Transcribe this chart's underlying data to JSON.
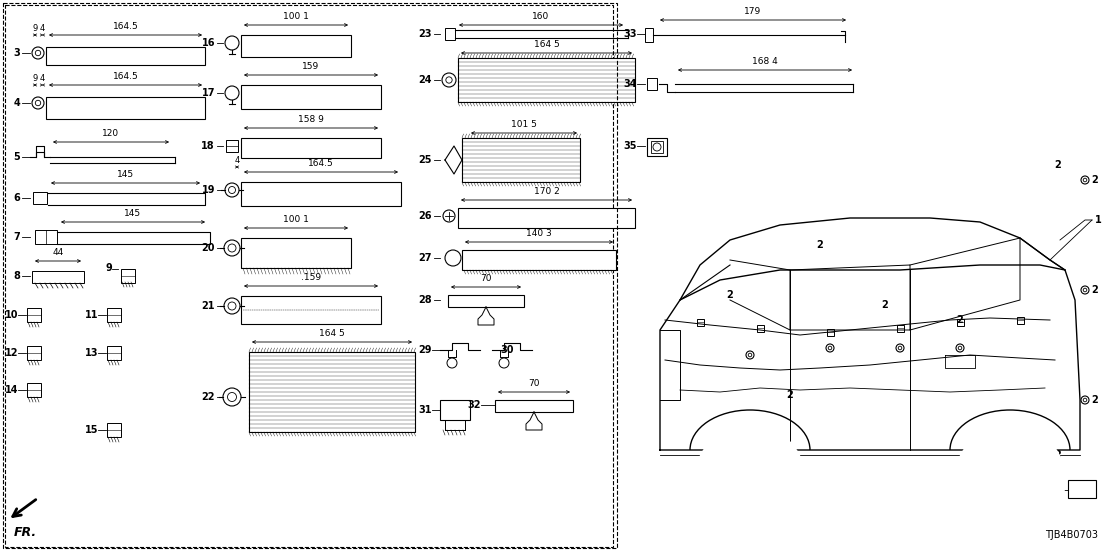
{
  "bg_color": "#ffffff",
  "part_number_label": "TJB4B0703",
  "black": "#000000"
}
